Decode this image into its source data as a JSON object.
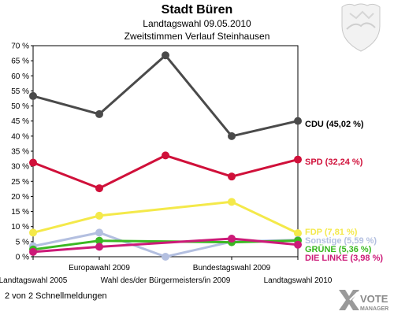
{
  "header": {
    "title": "Stadt Büren",
    "subtitle_1": "Landtagswahl 09.05.2010",
    "subtitle_2": "Zweitstimmen Verlauf Steinhausen"
  },
  "footer": {
    "note": "2 von 2 Schnellmeldungen"
  },
  "logo": {
    "line1": "VOTE",
    "line2": "MANAGER"
  },
  "chart_data": {
    "type": "line",
    "categories": [
      "Landtagswahl 2005",
      "Europawahl 2009",
      "Wahl des/der Bürgermeisters/in 2009",
      "Bundestagswahl 2009",
      "Landtagswahl 2010"
    ],
    "ylim": [
      0,
      70
    ],
    "yticks": [
      {
        "v": 0,
        "label": "0 %"
      },
      {
        "v": 5,
        "label": "5 %"
      },
      {
        "v": 10,
        "label": "10 %"
      },
      {
        "v": 15,
        "label": "15 %"
      },
      {
        "v": 20,
        "label": "20 %"
      },
      {
        "v": 25,
        "label": "25 %"
      },
      {
        "v": 30,
        "label": "30 %"
      },
      {
        "v": 35,
        "label": "35 %"
      },
      {
        "v": 40,
        "label": "40 %"
      },
      {
        "v": 45,
        "label": "45 %"
      },
      {
        "v": 50,
        "label": "50 %"
      },
      {
        "v": 55,
        "label": "55 %"
      },
      {
        "v": 60,
        "label": "60 %"
      },
      {
        "v": 65,
        "label": "65 %"
      },
      {
        "v": 70,
        "label": "70 %"
      }
    ],
    "grid": false,
    "series": [
      {
        "name": "CDU",
        "color": "#4a4a4a",
        "values": [
          53.3,
          47.3,
          66.8,
          40.0,
          45.02
        ],
        "label": "CDU (45,02 %)"
      },
      {
        "name": "SPD",
        "color": "#d0103a",
        "values": [
          31.2,
          22.7,
          33.6,
          26.6,
          32.24
        ],
        "label": "SPD (32,24 %)"
      },
      {
        "name": "FDP",
        "color": "#f4e94a",
        "values": [
          8.0,
          13.6,
          null,
          18.2,
          7.81
        ],
        "label": "FDP (7,81 %)"
      },
      {
        "name": "Sonstige",
        "color": "#b3bfe0",
        "values": [
          3.5,
          8.0,
          0.0,
          5.0,
          5.59
        ],
        "label": "Sonstige (5,59 %)"
      },
      {
        "name": "GRÜNE",
        "color": "#3ab822",
        "values": [
          2.4,
          5.3,
          null,
          4.8,
          5.36
        ],
        "label": "GRÜNE (5,36 %)"
      },
      {
        "name": "DIE LINKE",
        "color": "#cc1a78",
        "values": [
          1.6,
          3.3,
          null,
          6.0,
          3.98
        ],
        "label": "DIE LINKE (3,98 %)"
      }
    ]
  }
}
